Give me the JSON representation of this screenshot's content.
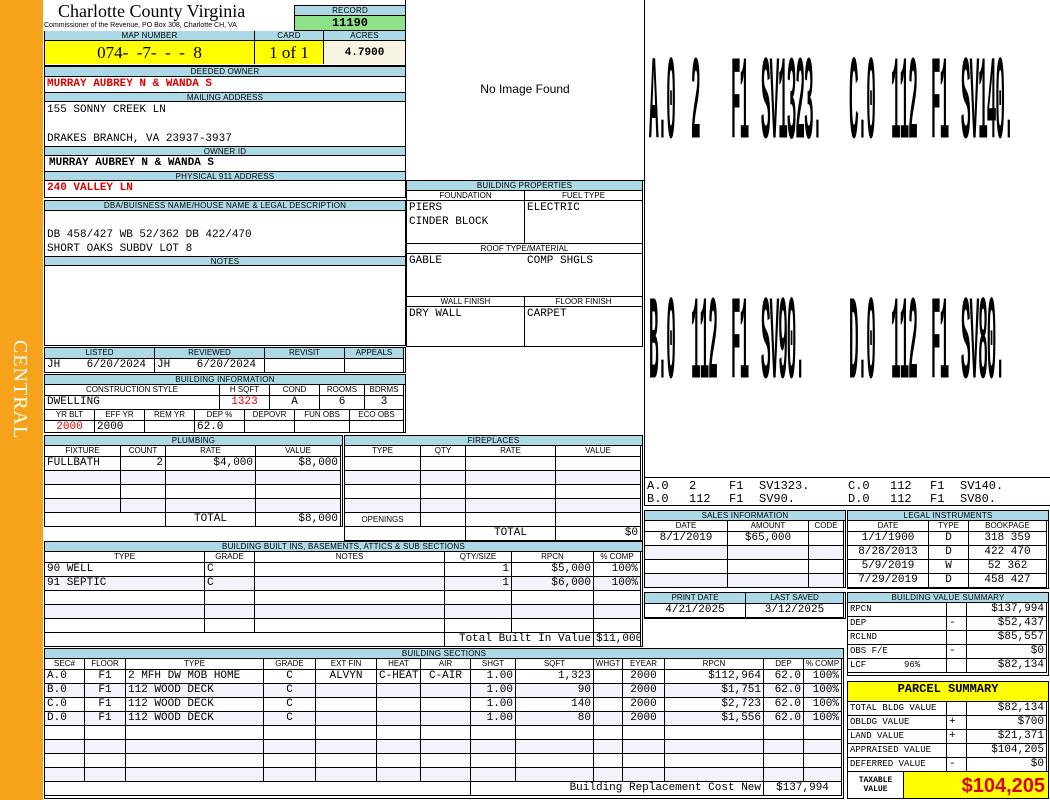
{
  "sidebar": {
    "district": "CENTRAL",
    "color": "#f7a21b"
  },
  "header": {
    "title": "Charlotte County Virginia",
    "subtitle": "Commissioner of the Revenue, PO Box 308, Charlotte CH, VA",
    "record_label": "RECORD",
    "record": "11190"
  },
  "parcel": {
    "map_label": "MAP NUMBER",
    "map": "074-  -7-  -  -  8",
    "card_label": "CARD",
    "card": "1 of 1",
    "acres_label": "ACRES",
    "acres": "4.7900"
  },
  "owner": {
    "deeded_label": "DEEDED OWNER",
    "deeded": "MURRAY AUBREY N & WANDA S",
    "mailing_label": "MAILING ADDRESS",
    "mailing_line1": "155 SONNY CREEK LN",
    "mailing_line2": "DRAKES BRANCH, VA 23937-3937",
    "owner_id_label": "OWNER ID",
    "owner_id": "MURRAY AUBREY N & WANDA S",
    "physical_label": "PHYSICAL 911 ADDRESS",
    "physical": "240 VALLEY LN"
  },
  "legal": {
    "label": "DBA/BUISNESS NAME/HOUSE NAME & LEGAL DESCRIPTION",
    "line1": "DB 458/427 WB 52/362 DB 422/470",
    "line2": "SHORT OAKS SUBDV LOT 8"
  },
  "notes": {
    "label": "NOTES"
  },
  "review": {
    "listed_label": "LISTED",
    "reviewed_label": "REVIEWED",
    "revisit_label": "REVISIT",
    "appeals_label": "APPEALS",
    "listed": "JH    6/20/2024",
    "reviewed": "JH    6/20/2024"
  },
  "building_info": {
    "label": "BUILDING INFORMATION",
    "cols1": [
      "CONSTRUCTION STYLE",
      "H SQFT",
      "COND",
      "ROOMS",
      "BDRMS"
    ],
    "vals1": [
      "DWELLING",
      "1323",
      "A",
      "6",
      "3"
    ],
    "cols2": [
      "YR BLT",
      "EFF YR",
      "REM YR",
      "DEP %",
      "DEPOVR",
      "FUN OBS",
      "ECO OBS"
    ],
    "vals2": [
      "2000",
      "2000",
      "",
      "62.0",
      "",
      "",
      ""
    ]
  },
  "image": {
    "placeholder": "No Image Found"
  },
  "building_properties": {
    "label": "BUILDING PROPERTIES",
    "foundation_label": "FOUNDATION",
    "foundation": [
      "PIERS",
      "CINDER BLOCK"
    ],
    "fuel_label": "FUEL TYPE",
    "fuel": "ELECTRIC",
    "roof_label": "ROOF TYPE/MATERIAL",
    "roof_type": "GABLE",
    "roof_material": "COMP SHGLS",
    "wall_label": "WALL FINISH",
    "wall": "DRY WALL",
    "floor_label": "FLOOR FINISH",
    "floor": "CARPET"
  },
  "sketch": {
    "sections": [
      [
        "A.0",
        "2",
        "F1",
        "SV1323."
      ],
      [
        "C.0",
        "112",
        "F1",
        "SV140."
      ],
      [
        "B.0",
        "112",
        "F1",
        "SV90."
      ],
      [
        "D.0",
        "112",
        "F1",
        "SV80."
      ]
    ]
  },
  "plumbing": {
    "label": "PLUMBING",
    "columns": [
      "FIXTURE",
      "COUNT",
      "RATE",
      "VALUE"
    ],
    "rows": [
      [
        "FULLBATH",
        "2",
        "$4,000",
        "$8,000"
      ],
      [
        "",
        "",
        "",
        ""
      ],
      [
        "",
        "",
        "",
        ""
      ],
      [
        "",
        "",
        "",
        ""
      ]
    ],
    "total_label": "TOTAL",
    "total": "$8,000"
  },
  "fireplaces": {
    "label": "FIREPLACES",
    "columns": [
      "TYPE",
      "QTY",
      "RATE",
      "VALUE"
    ],
    "rows": [
      [
        "",
        "",
        "",
        ""
      ],
      [
        "",
        "",
        "",
        ""
      ],
      [
        "",
        "",
        "",
        ""
      ],
      [
        "",
        "",
        "",
        ""
      ]
    ],
    "openings_label": "OPENINGS",
    "total_label": "TOTAL",
    "total": "$0"
  },
  "built_ins": {
    "label": "BUILDING BUILT INS, BASEMENTS, ATTICS & SUB SECTIONS",
    "columns": [
      "TYPE",
      "GRADE",
      "NOTES",
      "QTY/SIZE",
      "RPCN",
      "% COMP"
    ],
    "rows": [
      [
        "90 WELL",
        "C",
        "",
        "1",
        "$5,000",
        "100%"
      ],
      [
        "91 SEPTIC",
        "C",
        "",
        "1",
        "$6,000",
        "100%"
      ],
      [
        "",
        "",
        "",
        "",
        "",
        ""
      ],
      [
        "",
        "",
        "",
        "",
        "",
        ""
      ],
      [
        "",
        "",
        "",
        "",
        "",
        ""
      ]
    ],
    "total_label": "Total Built In Value",
    "total": "$11,000"
  },
  "sections": {
    "label": "BUILDING SECTIONS",
    "columns": [
      "SEC#",
      "FLOOR",
      "TYPE",
      "GRADE",
      "EXT FIN",
      "HEAT",
      "AIR",
      "SHGT",
      "SQFT",
      "WHGT",
      "EYEAR",
      "RPCN",
      "DEP",
      "% COMP"
    ],
    "rows": [
      [
        "A.0",
        "F1",
        "2 MFH DW MOB HOME",
        "C",
        "ALVYN",
        "C-HEAT",
        "C-AIR",
        "1.00",
        "1,323",
        "",
        "2000",
        "$112,964",
        "62.0",
        "100%"
      ],
      [
        "B.0",
        "F1",
        "112 WOOD DECK",
        "C",
        "",
        "",
        "",
        "1.00",
        "90",
        "",
        "2000",
        "$1,751",
        "62.0",
        "100%"
      ],
      [
        "C.0",
        "F1",
        "112 WOOD DECK",
        "C",
        "",
        "",
        "",
        "1.00",
        "140",
        "",
        "2000",
        "$2,723",
        "62.0",
        "100%"
      ],
      [
        "D.0",
        "F1",
        "112 WOOD DECK",
        "C",
        "",
        "",
        "",
        "1.00",
        "80",
        "",
        "2000",
        "$1,556",
        "62.0",
        "100%"
      ],
      [
        "",
        "",
        "",
        "",
        "",
        "",
        "",
        "",
        "",
        "",
        "",
        "",
        "",
        ""
      ],
      [
        "",
        "",
        "",
        "",
        "",
        "",
        "",
        "",
        "",
        "",
        "",
        "",
        "",
        ""
      ],
      [
        "",
        "",
        "",
        "",
        "",
        "",
        "",
        "",
        "",
        "",
        "",
        "",
        "",
        ""
      ],
      [
        "",
        "",
        "",
        "",
        "",
        "",
        "",
        "",
        "",
        "",
        "",
        "",
        "",
        ""
      ]
    ],
    "total_label": "Building Replacement Cost New",
    "total": "$137,994"
  },
  "sales": {
    "label": "SALES INFORMATION",
    "columns": [
      "DATE",
      "AMOUNT",
      "CODE"
    ],
    "rows": [
      [
        "8/1/2019",
        "$65,000",
        ""
      ],
      [
        "",
        "",
        ""
      ],
      [
        "",
        "",
        ""
      ],
      [
        "",
        "",
        ""
      ]
    ]
  },
  "dates": {
    "print_label": "PRINT DATE",
    "print": "4/21/2025",
    "saved_label": "LAST SAVED",
    "saved": "3/12/2025"
  },
  "legal_instruments": {
    "label": "LEGAL INSTRUMENTS",
    "columns": [
      "DATE",
      "TYPE",
      "BOOKPAGE"
    ],
    "rows": [
      [
        "1/1/1900",
        "D",
        "318 359"
      ],
      [
        "8/28/2013",
        "D",
        "422 470"
      ],
      [
        "5/9/2019",
        "W",
        "52 362"
      ],
      [
        "7/29/2019",
        "D",
        "458 427"
      ]
    ]
  },
  "value_summary": {
    "label": "BUILDING VALUE SUMMARY",
    "rows": [
      [
        "RPCN",
        "",
        "$137,994"
      ],
      [
        "DEP",
        "-",
        "$52,437"
      ],
      [
        "RCLND",
        "",
        "$85,557"
      ],
      [
        "OBS F/E",
        "-",
        "$0"
      ],
      [
        "LCF       96%",
        "",
        "$82,134"
      ]
    ]
  },
  "parcel_summary": {
    "label": "PARCEL SUMMARY",
    "rows": [
      [
        "TOTAL BLDG VALUE",
        "",
        "$82,134"
      ],
      [
        "OBLDG VALUE",
        "+",
        "$700"
      ],
      [
        "LAND VALUE",
        "+",
        "$21,371"
      ],
      [
        "APPRAISED VALUE",
        "",
        "$104,205"
      ],
      [
        "DEFERRED VALUE",
        "-",
        "$0"
      ]
    ],
    "taxable_label": "TAXABLE VALUE",
    "taxable": "$104,205",
    "highlight_color": "#ffff00"
  }
}
